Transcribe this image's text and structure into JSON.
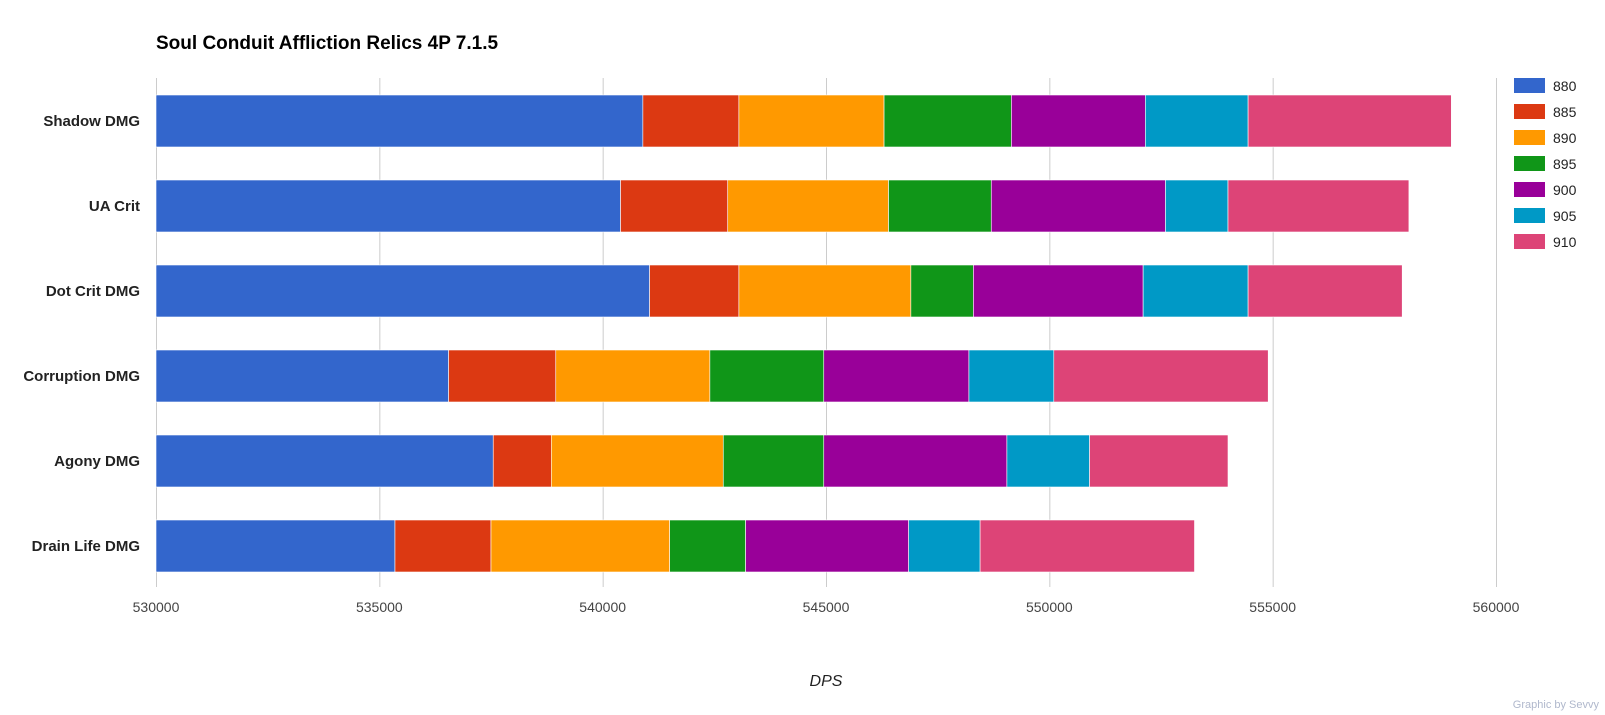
{
  "chart_data": {
    "type": "bar",
    "orientation": "horizontal",
    "stacked": true,
    "title": "Soul Conduit Affliction Relics 4P 7.1.5",
    "xlabel": "DPS",
    "ylabel": "",
    "xlim": [
      530000,
      560000
    ],
    "xticks": [
      530000,
      535000,
      540000,
      545000,
      550000,
      555000,
      560000
    ],
    "xtick_labels": [
      "530000",
      "535000",
      "540000",
      "545000",
      "550000",
      "555000",
      "560000"
    ],
    "grid": true,
    "legend_position": "right",
    "credit": "Graphic by Sevvy",
    "categories": [
      "Shadow DMG",
      "UA Crit",
      "Dot Crit DMG",
      "Corruption DMG",
      "Agony DMG",
      "Drain Life DMG"
    ],
    "series": [
      {
        "name": "880",
        "color": "#3366cc",
        "cumulative": [
          540900,
          540400,
          541050,
          536550,
          537550,
          535350
        ]
      },
      {
        "name": "885",
        "color": "#dc3912",
        "cumulative": [
          543050,
          542800,
          543050,
          538950,
          538850,
          537500
        ]
      },
      {
        "name": "890",
        "color": "#ff9900",
        "cumulative": [
          546300,
          546400,
          546900,
          542400,
          542700,
          541500
        ]
      },
      {
        "name": "895",
        "color": "#109618",
        "cumulative": [
          549150,
          548700,
          548300,
          544950,
          544950,
          543200
        ]
      },
      {
        "name": "900",
        "color": "#990099",
        "cumulative": [
          552150,
          552600,
          552100,
          548200,
          549050,
          546850
        ]
      },
      {
        "name": "905",
        "color": "#0099c6",
        "cumulative": [
          554450,
          554000,
          554450,
          550100,
          550900,
          548450
        ]
      },
      {
        "name": "910",
        "color": "#dd4477",
        "cumulative": [
          559000,
          558050,
          557900,
          554900,
          554000,
          553250
        ]
      }
    ]
  }
}
